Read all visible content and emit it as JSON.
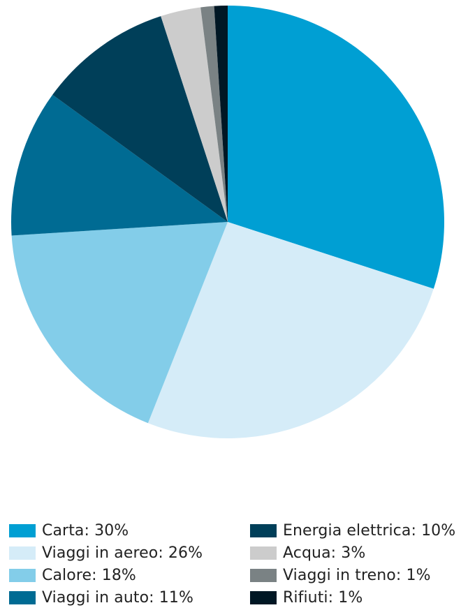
{
  "chart_data": {
    "type": "pie",
    "slices": [
      {
        "label": "Carta: 30%",
        "value": 30,
        "color": "#009fd3"
      },
      {
        "label": "Viaggi in aereo: 26%",
        "value": 26,
        "color": "#d5ecf8"
      },
      {
        "label": "Calore: 18%",
        "value": 18,
        "color": "#83cde9"
      },
      {
        "label": "Viaggi in auto: 11%",
        "value": 11,
        "color": "#006b93"
      },
      {
        "label": "Energia elettrica: 10%",
        "value": 10,
        "color": "#003f59"
      },
      {
        "label": "Acqua: 3%",
        "value": 3,
        "color": "#cccccc"
      },
      {
        "label": "Viaggi in treno: 1%",
        "value": 1,
        "color": "#7a8284"
      },
      {
        "label": "Rifiuti: 1%",
        "value": 1,
        "color": "#001724"
      }
    ],
    "legend_position": "bottom"
  }
}
